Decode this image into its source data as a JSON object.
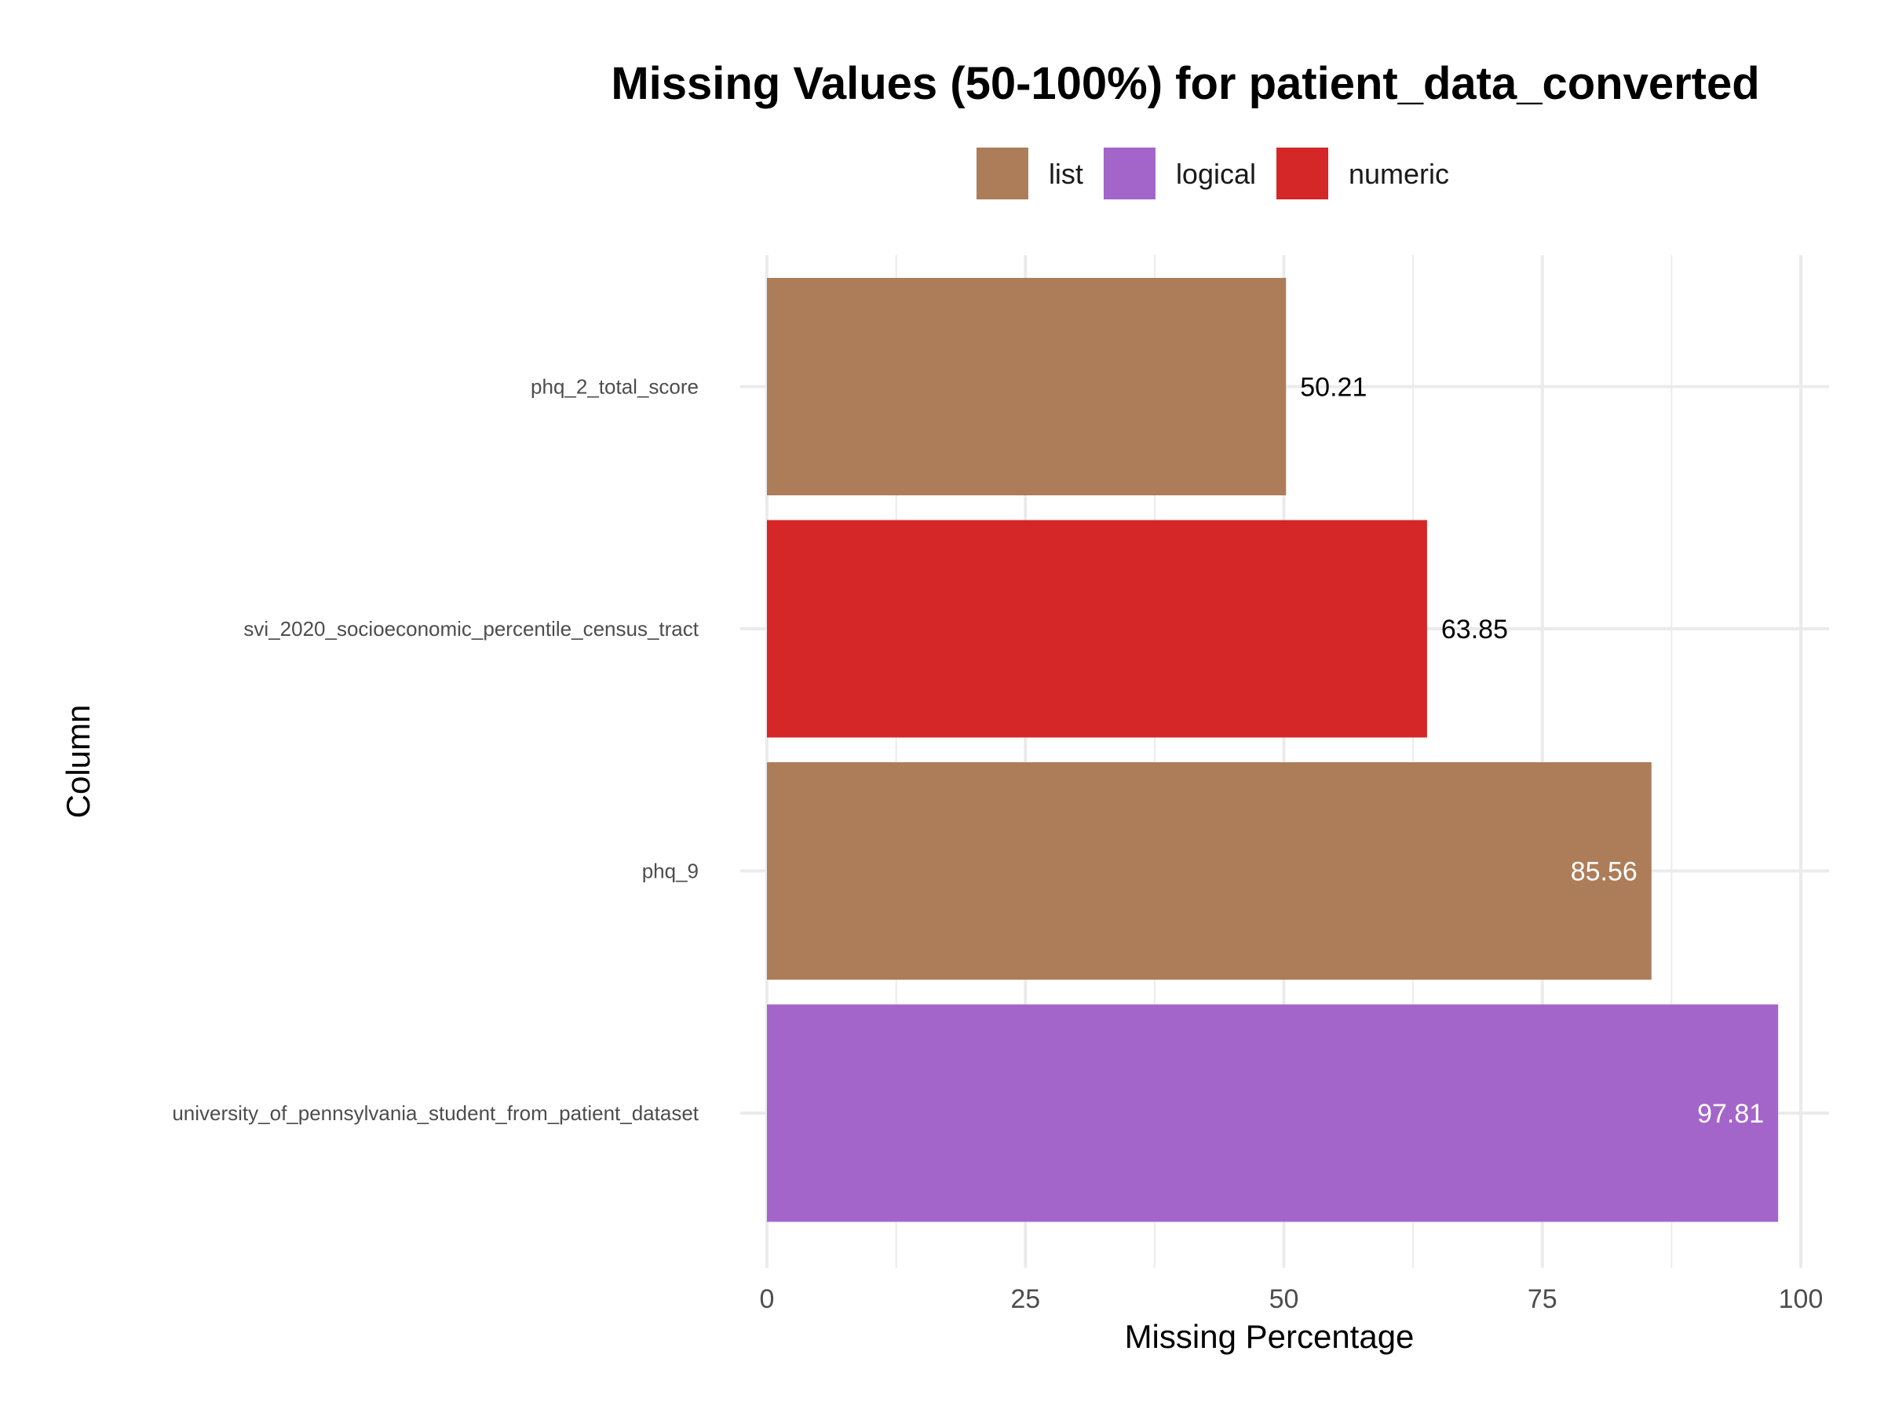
{
  "chart_data": {
    "type": "bar",
    "orientation": "horizontal",
    "title": "Missing Values (50-100%) for patient_data_converted",
    "xlabel": "Missing Percentage",
    "ylabel": "Column",
    "xlim": [
      0,
      100
    ],
    "x_ticks": [
      "0",
      "25",
      "50",
      "75",
      "100"
    ],
    "grid": true,
    "legend_position": "top",
    "legend": [
      {
        "label": "list",
        "color": "#AD7D5A"
      },
      {
        "label": "logical",
        "color": "#A465CA"
      },
      {
        "label": "numeric",
        "color": "#D52728"
      }
    ],
    "categories": [
      "phq_2_total_score",
      "svi_2020_socioeconomic_percentile_census_tract",
      "phq_9",
      "university_of_pennsylvania_student_from_patient_dataset"
    ],
    "values": [
      50.21,
      63.85,
      85.56,
      97.81
    ],
    "value_labels": [
      "50.21",
      "63.85",
      "85.56",
      "97.81"
    ],
    "types": [
      "list",
      "numeric",
      "list",
      "logical"
    ]
  }
}
